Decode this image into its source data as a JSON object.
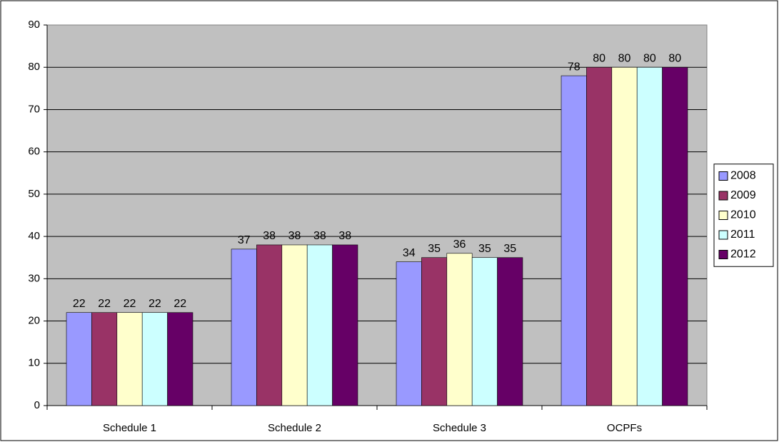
{
  "chart_data": {
    "type": "bar",
    "categories": [
      "Schedule 1",
      "Schedule 2",
      "Schedule 3",
      "OCPFs"
    ],
    "series": [
      {
        "name": "2008",
        "color": "#9999ff",
        "values": [
          22,
          37,
          34,
          78
        ]
      },
      {
        "name": "2009",
        "color": "#993366",
        "values": [
          22,
          38,
          35,
          80
        ]
      },
      {
        "name": "2010",
        "color": "#ffffcc",
        "values": [
          22,
          38,
          36,
          80
        ]
      },
      {
        "name": "2011",
        "color": "#ccffff",
        "values": [
          22,
          38,
          35,
          80
        ]
      },
      {
        "name": "2012",
        "color": "#660066",
        "values": [
          22,
          38,
          35,
          80
        ]
      }
    ],
    "ylim": [
      0,
      90
    ],
    "yticks": [
      0,
      10,
      20,
      30,
      40,
      50,
      60,
      70,
      80,
      90
    ],
    "grid": true,
    "legend": "right"
  }
}
